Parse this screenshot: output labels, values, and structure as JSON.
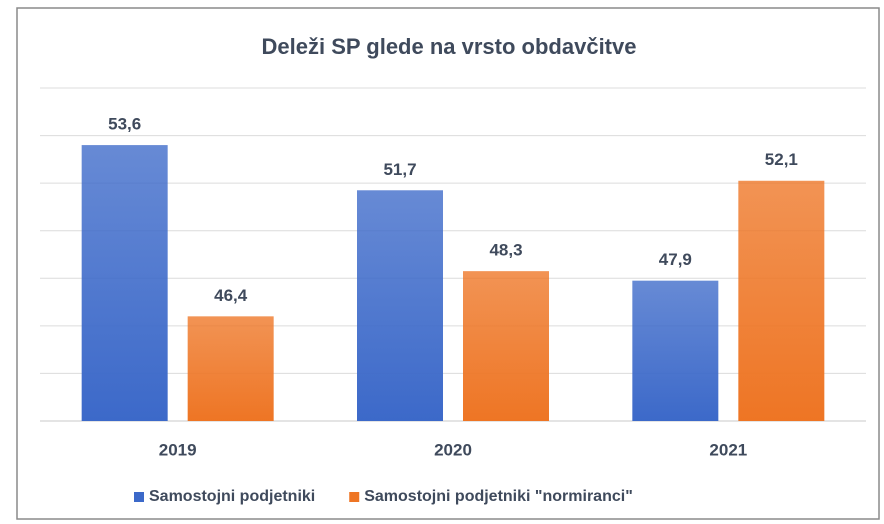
{
  "chart_data": {
    "type": "bar",
    "title": "Deleži SP glede na vrsto obdavčitve",
    "categories": [
      "2019",
      "2020",
      "2021"
    ],
    "series": [
      {
        "name": "Samostojni podjetniki",
        "color": "#3c69c9",
        "values": [
          53.6,
          51.7,
          47.9
        ],
        "value_labels": [
          "53,6",
          "51,7",
          "47,9"
        ]
      },
      {
        "name": "Samostojni podjetniki \"normiranci\"",
        "color": "#ee7524",
        "values": [
          46.4,
          48.3,
          52.1
        ],
        "value_labels": [
          "46,4",
          "48,3",
          "52,1"
        ]
      }
    ],
    "ylim": [
      42,
      56
    ],
    "yticks": [
      42,
      44,
      46,
      48,
      50,
      52,
      54,
      56
    ],
    "grid": true,
    "legend": "bottom"
  }
}
